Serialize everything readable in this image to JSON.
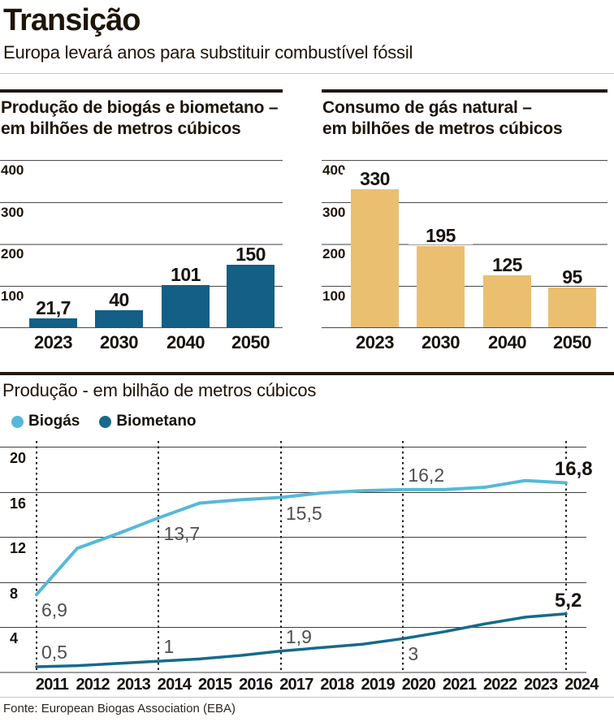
{
  "header": {
    "title": "Transição",
    "subtitle": "Europa levará anos para substituir combustível fóssil"
  },
  "footer": {
    "source": "Fonte: European Biogas Association (EBA)"
  },
  "chart_data": [
    {
      "id": "biogas-biometano-projection",
      "type": "bar",
      "title_lines": [
        "Produção de biogás e biometano –",
        "em bilhões de metros cúbicos"
      ],
      "categories": [
        "2023",
        "2030",
        "2040",
        "2050"
      ],
      "values": [
        21.7,
        40,
        101,
        150
      ],
      "value_labels": [
        "21,7",
        "40",
        "101",
        "150"
      ],
      "bar_color": "#135f85",
      "yticks": [
        100,
        200,
        300,
        400
      ],
      "major_tick": 200,
      "ylim": [
        0,
        430
      ],
      "grid": true
    },
    {
      "id": "natural-gas-consumption",
      "type": "bar",
      "title_lines": [
        "Consumo de gás natural –",
        "em bilhões de metros cúbicos"
      ],
      "categories": [
        "2023",
        "2030",
        "2040",
        "2050"
      ],
      "values": [
        330,
        195,
        125,
        95
      ],
      "value_labels": [
        "330",
        "195",
        "125",
        "95"
      ],
      "bar_color": "#eabf70",
      "yticks": [
        100,
        200,
        300,
        400
      ],
      "major_tick": 200,
      "ylim": [
        0,
        430
      ],
      "grid": true
    },
    {
      "id": "production-history",
      "type": "line",
      "title": "Produção - em bilhão de metros cúbicos",
      "x": [
        2011,
        2012,
        2013,
        2014,
        2015,
        2016,
        2017,
        2018,
        2019,
        2020,
        2021,
        2022,
        2023,
        2024
      ],
      "yticks": [
        4,
        8,
        12,
        16,
        20
      ],
      "ylim": [
        0,
        20
      ],
      "grid": true,
      "legend_position": "top-left",
      "dotted_guides_at": [
        2011,
        2014,
        2017,
        2020,
        2024
      ],
      "series": [
        {
          "name": "Biogás",
          "color": "#56b8d8",
          "values": [
            6.9,
            11.0,
            12.3,
            13.7,
            15.0,
            15.3,
            15.5,
            15.9,
            16.1,
            16.2,
            16.2,
            16.4,
            17.0,
            16.8
          ],
          "annotations": [
            {
              "year": 2011,
              "value": 6.9,
              "label": "6,9",
              "side": "below",
              "strong": false
            },
            {
              "year": 2014,
              "value": 13.7,
              "label": "13,7",
              "side": "below",
              "strong": false
            },
            {
              "year": 2017,
              "value": 15.5,
              "label": "15,5",
              "side": "below",
              "strong": false
            },
            {
              "year": 2020,
              "value": 16.2,
              "label": "16,2",
              "side": "above",
              "strong": false
            },
            {
              "year": 2024,
              "value": 16.8,
              "label": "16,8",
              "side": "above",
              "strong": true
            }
          ]
        },
        {
          "name": "Biometano",
          "color": "#166a8a",
          "values": [
            0.5,
            0.6,
            0.8,
            1.0,
            1.2,
            1.5,
            1.9,
            2.2,
            2.5,
            3.0,
            3.6,
            4.3,
            4.9,
            5.2
          ],
          "annotations": [
            {
              "year": 2011,
              "value": 0.5,
              "label": "0,5",
              "side": "above",
              "strong": false
            },
            {
              "year": 2014,
              "value": 1.0,
              "label": "1",
              "side": "above",
              "strong": false
            },
            {
              "year": 2017,
              "value": 1.9,
              "label": "1,9",
              "side": "above",
              "strong": false
            },
            {
              "year": 2020,
              "value": 3.0,
              "label": "3",
              "side": "below",
              "strong": false
            },
            {
              "year": 2024,
              "value": 5.2,
              "label": "5,2",
              "side": "above",
              "strong": true
            }
          ]
        }
      ]
    }
  ]
}
